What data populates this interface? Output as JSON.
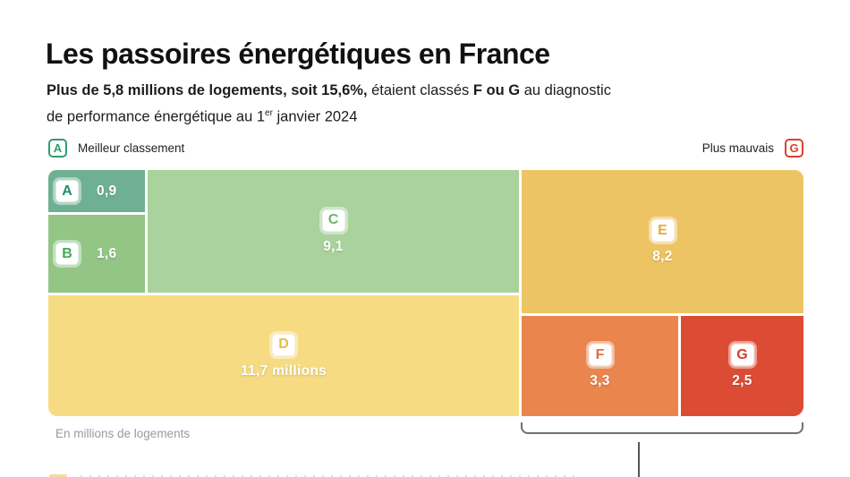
{
  "header": {
    "title": "Les passoires énergétiques en France",
    "subtitle": {
      "bold1": "Plus de 5,8 millions de logements, soit 15,6%,",
      "normal1": "étaient classés",
      "bold2": "F ou G",
      "normal2": "au diagnostic",
      "line2_pre": "de performance énergétique au 1",
      "line2_sup": "er",
      "line2_post": "janvier 2024"
    }
  },
  "legend": {
    "best": {
      "badge": "A",
      "label": "Meilleur classement",
      "color": "#2f9e6e"
    },
    "worst": {
      "badge": "G",
      "label": "Plus mauvais",
      "color": "#d8432f"
    }
  },
  "chart_data": {
    "type": "treemap",
    "title": "Les passoires énergétiques en France",
    "unit_note": "En millions de logements",
    "categories": [
      "A",
      "B",
      "C",
      "D",
      "E",
      "F",
      "G"
    ],
    "values": [
      0.9,
      1.6,
      9.1,
      11.7,
      8.2,
      3.3,
      2.5
    ],
    "highlight_group": [
      "F",
      "G"
    ],
    "blocks": [
      {
        "letter": "A",
        "value": 0.9,
        "label": "0,9",
        "color": "#6fb092",
        "letter_color": "#1f8e66"
      },
      {
        "letter": "B",
        "value": 1.6,
        "label": "1,6",
        "color": "#93c585",
        "letter_color": "#47a857"
      },
      {
        "letter": "C",
        "value": 9.1,
        "label": "9,1",
        "color": "#a9d29c",
        "letter_color": "#6eb368"
      },
      {
        "letter": "D",
        "value": 11.7,
        "label": "11,7 millions",
        "color": "#f6db82",
        "letter_color": "#e5bd45"
      },
      {
        "letter": "E",
        "value": 8.2,
        "label": "8,2",
        "color": "#edc464",
        "letter_color": "#e2ae33"
      },
      {
        "letter": "F",
        "value": 3.3,
        "label": "3,3",
        "color": "#e9854d",
        "letter_color": "#e2703a"
      },
      {
        "letter": "G",
        "value": 2.5,
        "label": "2,5",
        "color": "#dc4c34",
        "letter_color": "#d63e2a"
      }
    ]
  },
  "footnote": "En millions de logements"
}
